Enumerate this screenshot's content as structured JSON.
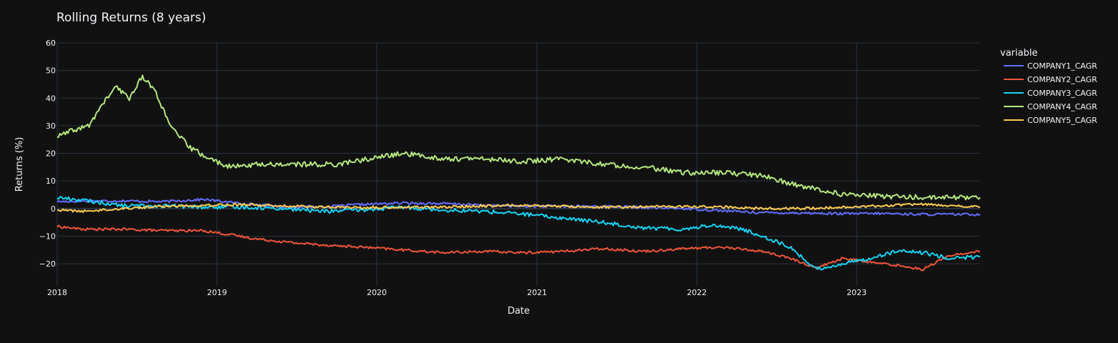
{
  "chart_data": {
    "type": "line",
    "title": "Rolling Returns (8 years)",
    "xlabel": "Date",
    "ylabel": "Returns (%)",
    "legend_title": "variable",
    "legend_position": "right",
    "grid": true,
    "background": "#111111",
    "grid_color": "#283442",
    "x_ticks": [
      "2018",
      "2019",
      "2020",
      "2021",
      "2022",
      "2023"
    ],
    "y_ticks": [
      "60",
      "50",
      "40",
      "30",
      "20",
      "10",
      "0",
      "−10",
      "−20"
    ],
    "xlim": [
      "2018-01-01",
      "2023-10-10"
    ],
    "ylim": [
      -28,
      60
    ],
    "series": [
      {
        "name": "COMPANY1_CAGR",
        "color": "#636efa",
        "x": [
          "2018-01-01",
          "2018-03-01",
          "2018-06-01",
          "2018-09-01",
          "2018-12-01",
          "2019-03-01",
          "2019-06-01",
          "2019-09-01",
          "2019-12-01",
          "2020-03-01",
          "2020-06-01",
          "2020-09-01",
          "2020-12-01",
          "2021-03-01",
          "2021-06-01",
          "2021-09-01",
          "2021-12-01",
          "2022-03-01",
          "2022-06-01",
          "2022-09-01",
          "2022-12-01",
          "2023-03-01",
          "2023-06-01",
          "2023-10-10"
        ],
        "y": [
          2.5,
          2.7,
          2.8,
          2.5,
          3.3,
          1.8,
          0.6,
          0.6,
          1.5,
          2.0,
          1.8,
          1.2,
          0.8,
          0.8,
          0.8,
          0.4,
          0.0,
          -0.8,
          -1.5,
          -1.6,
          -1.9,
          -1.8,
          -2.1,
          -2.1
        ]
      },
      {
        "name": "COMPANY2_CAGR",
        "color": "#ef553b",
        "x": [
          "2018-01-01",
          "2018-03-01",
          "2018-06-01",
          "2018-09-01",
          "2018-12-01",
          "2019-02-01",
          "2019-04-01",
          "2019-07-01",
          "2019-10-01",
          "2019-12-01",
          "2020-03-01",
          "2020-06-01",
          "2020-09-01",
          "2020-12-01",
          "2021-03-01",
          "2021-06-01",
          "2021-09-01",
          "2021-12-01",
          "2022-03-01",
          "2022-06-01",
          "2022-08-01",
          "2022-10-01",
          "2022-12-01",
          "2023-02-01",
          "2023-04-01",
          "2023-06-01",
          "2023-08-01",
          "2023-10-10"
        ],
        "y": [
          -6.5,
          -7.5,
          -7.5,
          -8.0,
          -8.0,
          -9.5,
          -11.0,
          -12.5,
          -13.5,
          -14.0,
          -15.0,
          -16.0,
          -15.5,
          -16.0,
          -15.5,
          -14.5,
          -15.5,
          -14.5,
          -14.0,
          -15.5,
          -18.0,
          -21.5,
          -18.0,
          -19.5,
          -20.5,
          -22.0,
          -17.0,
          -15.5
        ]
      },
      {
        "name": "COMPANY3_CAGR",
        "color": "#19d3f3",
        "x": [
          "2018-01-01",
          "2018-03-01",
          "2018-06-01",
          "2018-09-01",
          "2018-12-01",
          "2019-03-01",
          "2019-06-01",
          "2019-09-01",
          "2019-12-01",
          "2020-03-01",
          "2020-06-01",
          "2020-09-01",
          "2020-12-01",
          "2021-03-01",
          "2021-06-01",
          "2021-09-01",
          "2021-12-01",
          "2022-02-01",
          "2022-04-01",
          "2022-06-01",
          "2022-08-01",
          "2022-10-01",
          "2022-12-01",
          "2023-02-01",
          "2023-04-01",
          "2023-06-01",
          "2023-08-01",
          "2023-10-10"
        ],
        "y": [
          4.0,
          3.0,
          1.0,
          1.0,
          0.5,
          0.5,
          0.0,
          -1.0,
          -0.5,
          0.5,
          -0.5,
          -1.0,
          -2.0,
          -3.5,
          -5.0,
          -7.0,
          -7.5,
          -6.0,
          -7.0,
          -10.0,
          -14.0,
          -22.0,
          -20.0,
          -18.0,
          -15.5,
          -16.0,
          -18.0,
          -17.5
        ]
      },
      {
        "name": "COMPANY4_CAGR",
        "color": "#b6e880",
        "x": [
          "2018-01-01",
          "2018-02-01",
          "2018-03-15",
          "2018-04-15",
          "2018-05-15",
          "2018-06-15",
          "2018-07-15",
          "2018-08-15",
          "2018-09-15",
          "2018-11-01",
          "2018-12-15",
          "2019-02-01",
          "2019-04-01",
          "2019-07-01",
          "2019-10-01",
          "2019-12-15",
          "2020-03-01",
          "2020-06-01",
          "2020-09-01",
          "2020-12-01",
          "2021-03-01",
          "2021-06-01",
          "2021-09-01",
          "2021-12-01",
          "2022-03-01",
          "2022-06-01",
          "2022-08-01",
          "2022-10-01",
          "2022-12-01",
          "2023-03-01",
          "2023-06-01",
          "2023-10-10"
        ],
        "y": [
          26,
          28,
          30,
          38,
          44,
          40,
          48,
          42,
          30,
          22,
          18,
          15,
          16,
          16,
          16,
          18,
          20,
          18,
          18,
          17,
          18,
          16,
          15,
          13,
          13,
          12,
          9,
          7,
          5,
          4.5,
          4,
          4
        ]
      },
      {
        "name": "COMPANY5_CAGR",
        "color": "#fecb52",
        "x": [
          "2018-01-01",
          "2018-03-01",
          "2018-06-01",
          "2018-09-01",
          "2018-12-01",
          "2019-03-01",
          "2019-06-01",
          "2019-09-01",
          "2019-12-01",
          "2020-03-01",
          "2020-06-01",
          "2020-09-01",
          "2020-12-01",
          "2021-03-01",
          "2021-06-01",
          "2021-09-01",
          "2021-12-01",
          "2022-03-01",
          "2022-06-01",
          "2022-09-01",
          "2022-12-01",
          "2023-03-01",
          "2023-06-01",
          "2023-10-10"
        ],
        "y": [
          -0.5,
          -1.0,
          0.0,
          0.8,
          1.2,
          1.5,
          1.0,
          0.5,
          0.3,
          0.5,
          0.5,
          1.0,
          1.2,
          0.8,
          0.5,
          0.6,
          0.8,
          0.5,
          0.0,
          0.0,
          0.5,
          1.0,
          1.5,
          0.5
        ]
      }
    ]
  }
}
